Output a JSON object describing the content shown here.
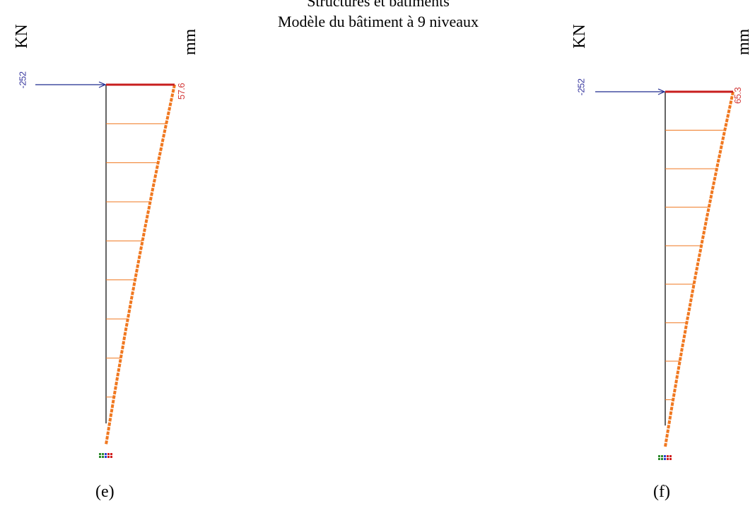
{
  "page": {
    "title_cut": "Structures et bâtiments",
    "title": "Modèle du bâtiment à 9 niveaux"
  },
  "panels": [
    {
      "force_unit": "KN",
      "disp_unit": "mm",
      "force_value": "-252",
      "disp_value": "57.6",
      "caption": "(e)",
      "top_displacement_mm": 57.6,
      "levels": 9
    },
    {
      "force_unit": "KN",
      "disp_unit": "mm",
      "force_value": "-252",
      "disp_value": "65.3",
      "caption": "(f)",
      "top_displacement_mm": 65.3,
      "levels": 9
    }
  ],
  "colors": {
    "force_arrow": "#1f2a8f",
    "force_label": "#3a3aa0",
    "disp_label": "#d23a3a",
    "deflection": "#f07820",
    "top_beam": "#c81e1e",
    "column": "#111111",
    "support_green": "#2e8b2e",
    "support_blue": "#2b3fcf",
    "support_red": "#d02020"
  }
}
